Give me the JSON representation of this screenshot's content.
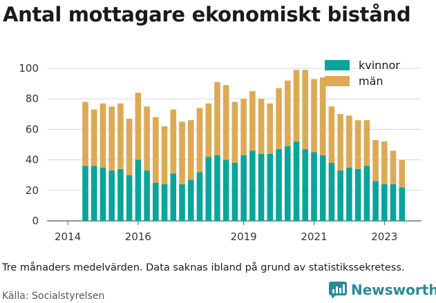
{
  "title": "Antal mottagare ekonomiskt bistånd",
  "note": "Tre månaders medelvärden. Data saknas ibland på grund av statistikssekretess.",
  "source": "Källa: Socialstyrelsen",
  "brand": "Newsworthy",
  "colors": {
    "kvinnor": "#0aa59a",
    "man": "#dcaa55",
    "grid": "#d8d8d8",
    "brand": "#2a8a9a"
  },
  "chart_data": {
    "type": "bar",
    "stacked": true,
    "x_start": "2014-09",
    "x_step_months": 3,
    "x_ticks": [
      2014,
      2016,
      2019,
      2021,
      2023
    ],
    "ylim": [
      0,
      100
    ],
    "y_ticks": [
      0,
      20,
      40,
      60,
      80,
      100
    ],
    "grid": true,
    "legend_position": "top-right",
    "series": [
      {
        "name": "kvinnor",
        "color": "#0aa59a",
        "values": [
          36,
          36,
          35,
          33,
          34,
          30,
          40,
          33,
          25,
          24,
          31,
          24,
          27,
          32,
          42,
          43,
          40,
          38,
          43,
          46,
          44,
          44,
          47,
          49,
          52,
          47,
          45,
          43,
          38,
          33,
          35,
          34,
          36,
          26,
          24,
          24,
          22
        ]
      },
      {
        "name": "män",
        "color": "#dcaa55",
        "values": [
          42,
          37,
          42,
          42,
          43,
          37,
          44,
          42,
          43,
          38,
          42,
          41,
          39,
          42,
          35,
          48,
          49,
          40,
          37,
          39,
          36,
          33,
          40,
          43,
          47,
          52,
          48,
          51,
          37,
          37,
          34,
          32,
          30,
          27,
          28,
          22,
          18
        ]
      }
    ]
  }
}
